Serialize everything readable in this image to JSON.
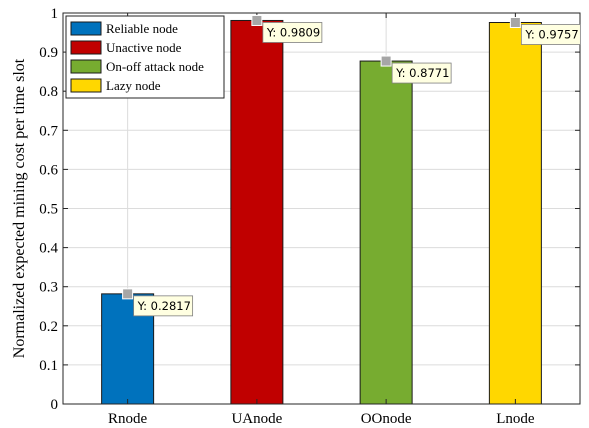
{
  "chart_data": {
    "type": "bar",
    "title": "",
    "xlabel": "",
    "ylabel": "Normalized expected mining cost per time slot",
    "ylim": [
      0,
      1
    ],
    "yticks": [
      0,
      0.1,
      0.2,
      0.3,
      0.4,
      0.5,
      0.6,
      0.7,
      0.8,
      0.9,
      1
    ],
    "ytick_labels": [
      "0",
      "0.1",
      "0.2",
      "0.3",
      "0.4",
      "0.5",
      "0.6",
      "0.7",
      "0.8",
      "0.9",
      "1"
    ],
    "categories": [
      "Rnode",
      "UAnode",
      "OOnode",
      "Lnode"
    ],
    "values": [
      0.2817,
      0.9809,
      0.8771,
      0.9757
    ],
    "colors": [
      "#0072BD",
      "#C00000",
      "#77AC30",
      "#FFD700"
    ],
    "grid": true,
    "legend": {
      "placement": "top-left",
      "entries": [
        "Reliable node",
        "Unactive node",
        "On-off attack node",
        "Lazy node"
      ]
    },
    "datatips": [
      "Y: 0.2817",
      "Y: 0.9809",
      "Y: 0.8771",
      "Y: 0.9757"
    ]
  }
}
